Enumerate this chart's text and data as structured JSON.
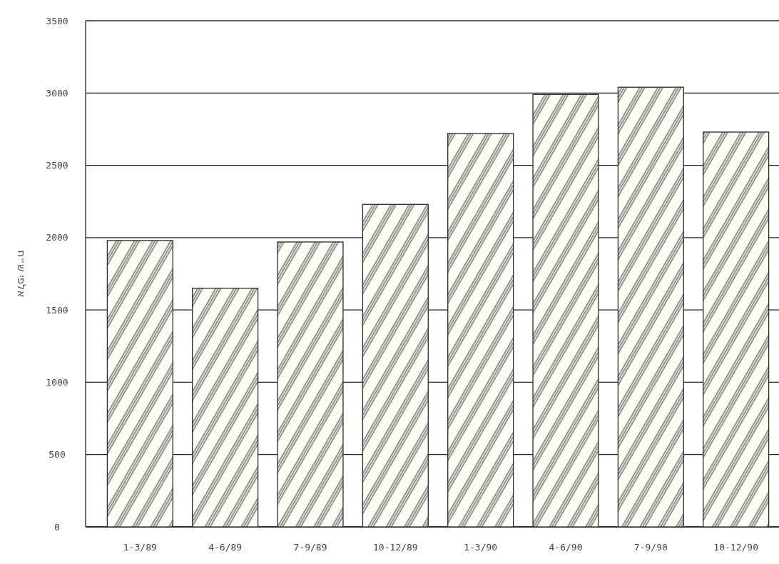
{
  "chart_data": {
    "type": "bar",
    "ylabel": "אלפי ש״ח",
    "categories": [
      "1-3/89",
      "4-6/89",
      "7-9/89",
      "10-12/89",
      "1-3/90",
      "4-6/90",
      "7-9/90",
      "10-12/90"
    ],
    "values": [
      1980,
      1650,
      1970,
      2230,
      2720,
      2990,
      3040,
      2730
    ],
    "color": "#2a2a2a",
    "ylim": [
      0,
      3500
    ],
    "yticks": [
      0,
      500,
      1000,
      1500,
      2000,
      2500,
      3000,
      3500
    ],
    "grid": "y"
  }
}
